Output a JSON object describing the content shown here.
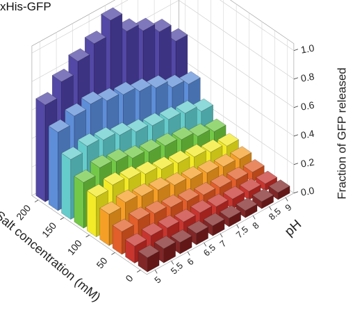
{
  "chart_data": {
    "type": "bar",
    "subtype": "3d-bar",
    "title": "xHis-GFP",
    "xlabel": "pH",
    "ylabel": "Salt concentration (mM)",
    "zlabel": "Fraction of GFP released",
    "x": [
      5,
      5.5,
      6,
      6.5,
      7,
      7.5,
      8,
      8.5,
      9
    ],
    "y": [
      0,
      25,
      50,
      75,
      100,
      125,
      150,
      175,
      200
    ],
    "x_tick_labels": [
      "5",
      "5.5",
      "6",
      "6.5",
      "7",
      "7.5",
      "8",
      "8.5",
      "9"
    ],
    "y_tick_labels": [
      "0",
      "50",
      "100",
      "150",
      "200"
    ],
    "z_tick_labels": [
      "0.0",
      "0.2",
      "0.4",
      "0.6",
      "0.8",
      "1.0"
    ],
    "xlim": [
      5,
      9
    ],
    "ylim": [
      0,
      200
    ],
    "zlim": [
      0,
      1
    ],
    "grid": true,
    "values": [
      [
        0.1,
        0.1,
        0.08,
        0.08,
        0.07,
        0.06,
        0.05,
        0.05,
        0.05
      ],
      [
        0.12,
        0.13,
        0.12,
        0.1,
        0.1,
        0.08,
        0.07,
        0.06,
        0.05
      ],
      [
        0.16,
        0.18,
        0.16,
        0.14,
        0.12,
        0.1,
        0.09,
        0.08,
        0.07
      ],
      [
        0.22,
        0.24,
        0.22,
        0.2,
        0.17,
        0.15,
        0.13,
        0.11,
        0.1
      ],
      [
        0.28,
        0.3,
        0.28,
        0.25,
        0.22,
        0.2,
        0.18,
        0.15,
        0.13
      ],
      [
        0.32,
        0.36,
        0.34,
        0.3,
        0.28,
        0.26,
        0.24,
        0.2,
        0.17
      ],
      [
        0.42,
        0.45,
        0.43,
        0.4,
        0.36,
        0.34,
        0.32,
        0.3,
        0.25
      ],
      [
        0.55,
        0.6,
        0.62,
        0.58,
        0.56,
        0.52,
        0.48,
        0.42,
        0.38
      ],
      [
        0.68,
        0.78,
        0.86,
        0.92,
        1.02,
        0.88,
        0.82,
        0.75,
        0.62
      ]
    ],
    "colors": [
      "#7a1c1c",
      "#c52a24",
      "#e0561f",
      "#f59a1c",
      "#f2ea1c",
      "#6cc63d",
      "#5ec8c8",
      "#5688d6",
      "#4a3ea0"
    ]
  }
}
